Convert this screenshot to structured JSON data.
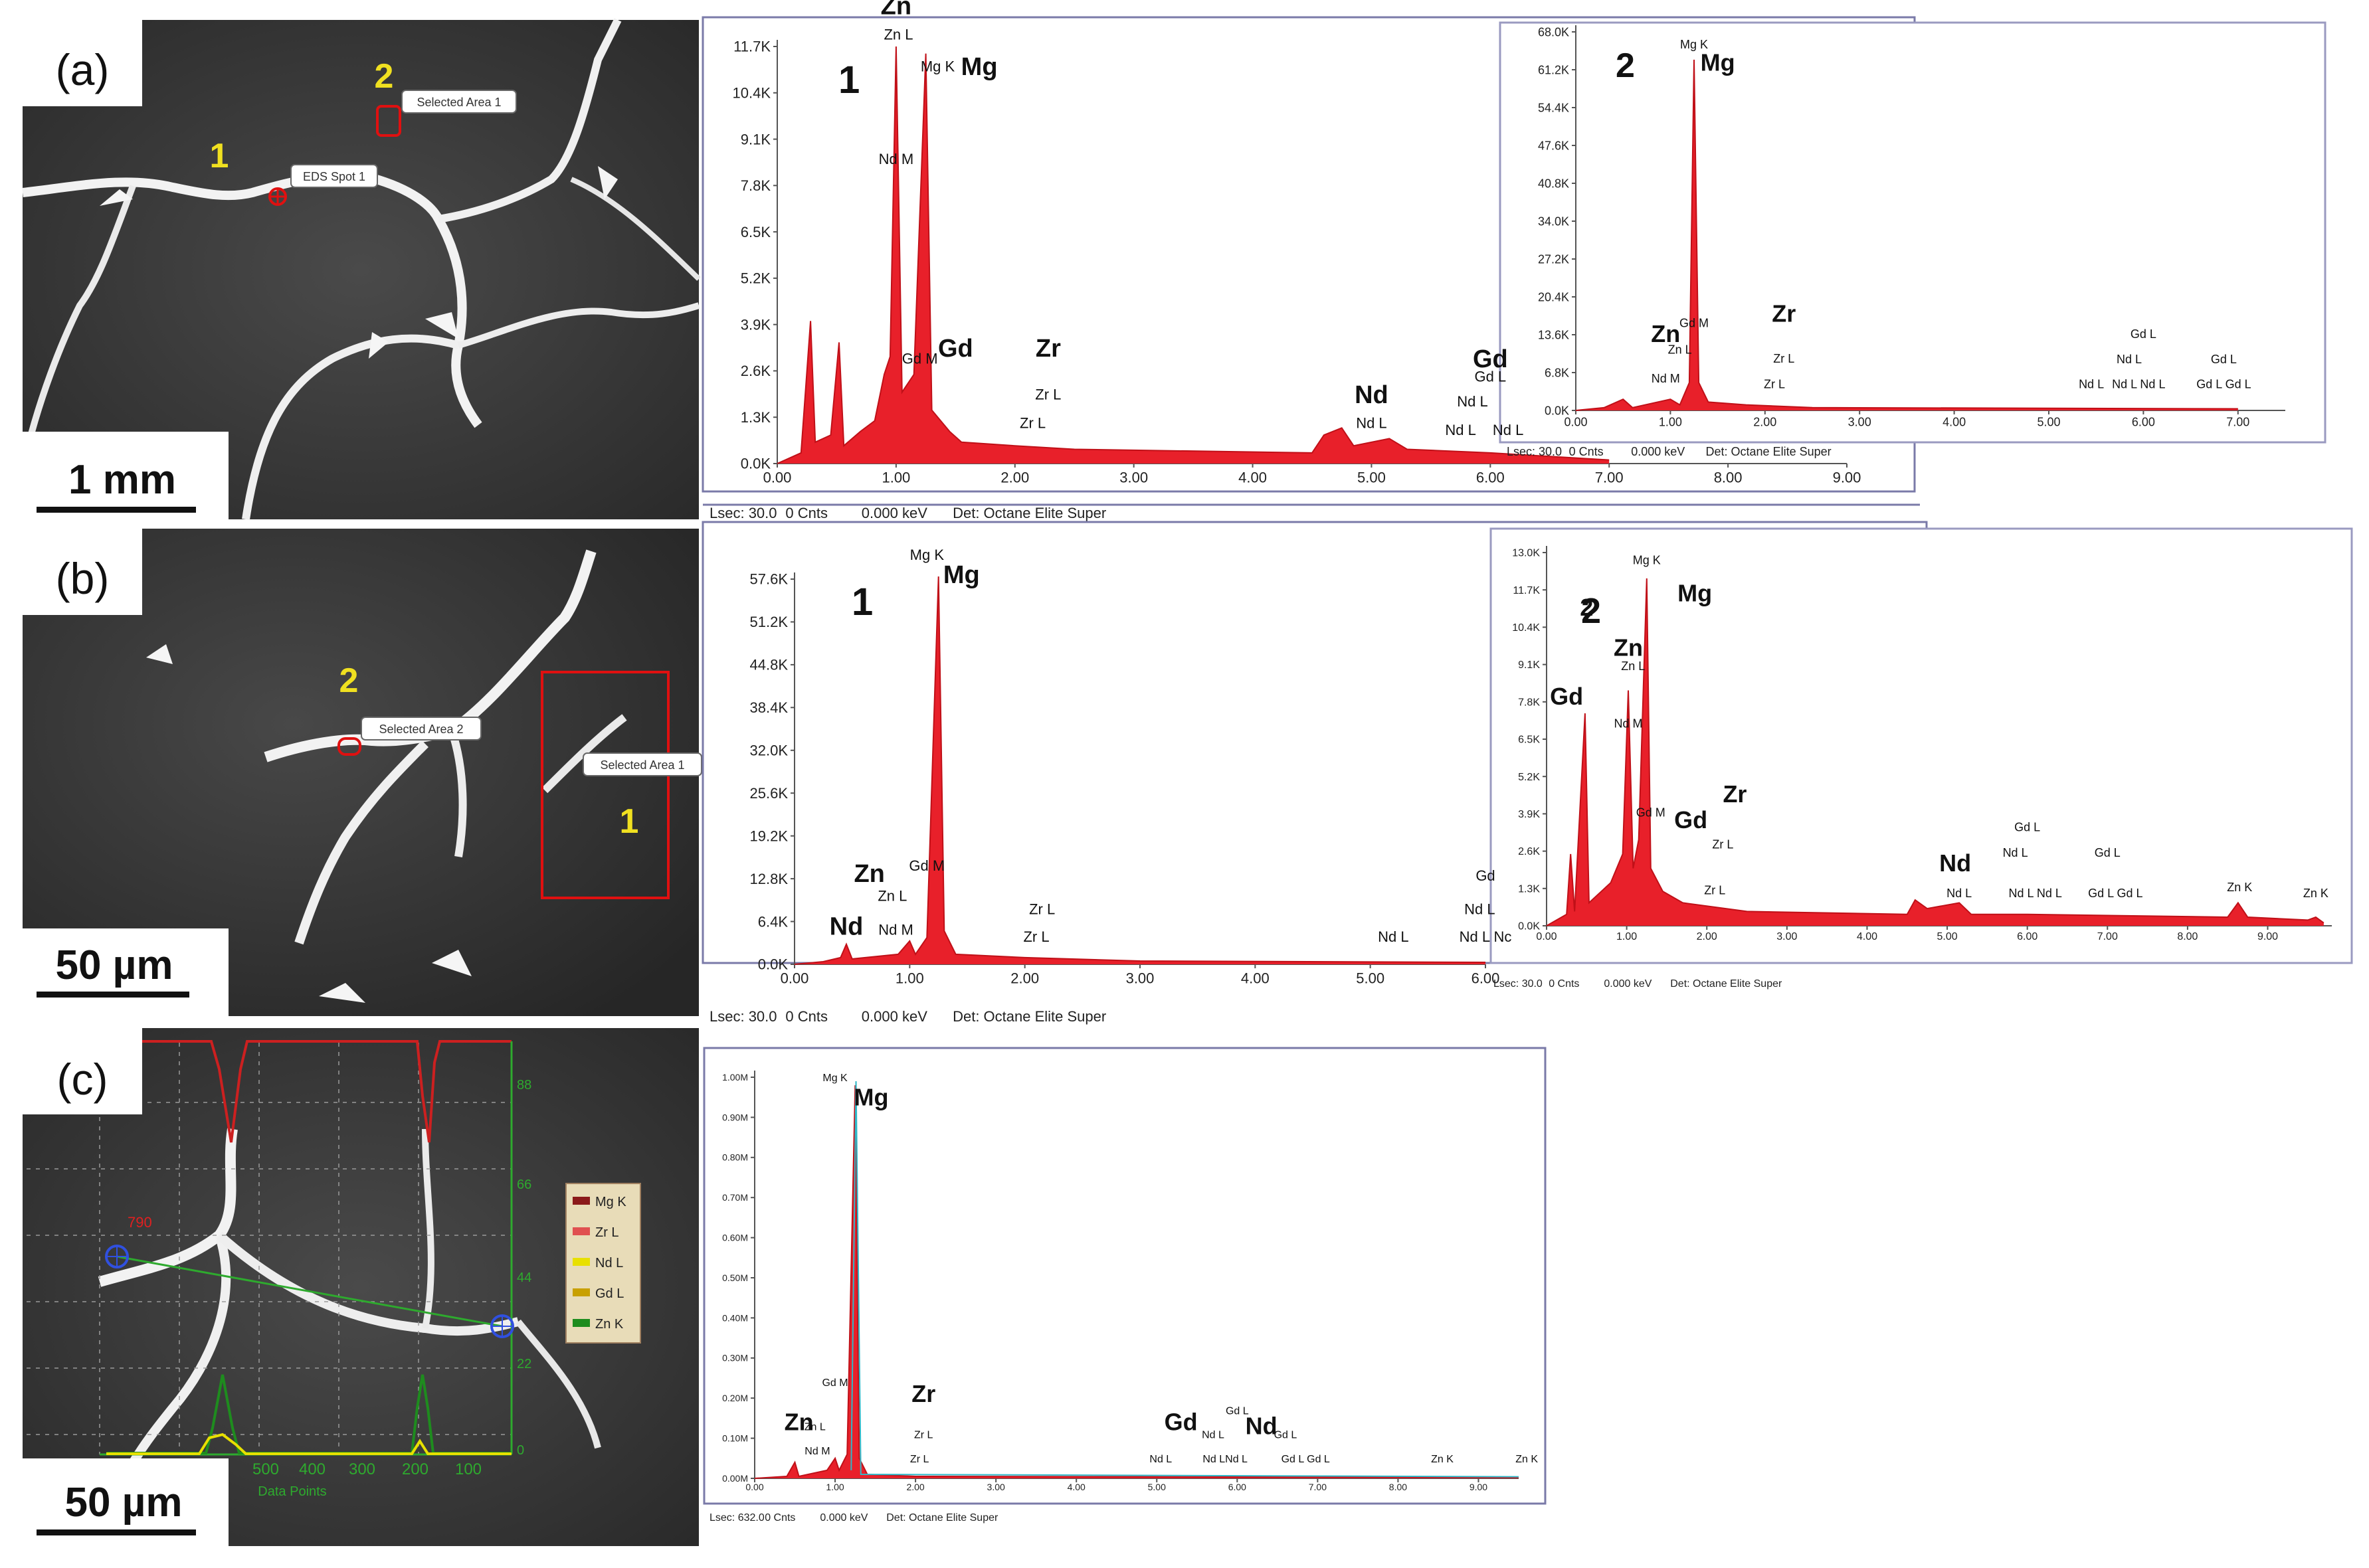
{
  "panel_labels": [
    "(a)",
    "(b)",
    "(c)"
  ],
  "micrographs": [
    {
      "scale_bar": "1 mm",
      "markers": [
        "1",
        "2"
      ],
      "callouts": [
        "Selected Area 1",
        "EDS Spot 1"
      ]
    },
    {
      "scale_bar": "50 µm",
      "markers": [
        "2",
        "1"
      ],
      "callouts": [
        "Selected Area 2",
        "Selected Area 1"
      ]
    },
    {
      "scale_bar": "50 µm",
      "profile_right_ticks": [
        "88",
        "66",
        "44",
        "22",
        "0"
      ],
      "profile_x_ticks": [
        "500",
        "400",
        "300",
        "200",
        "100"
      ],
      "profile_xlabel": "Data Points",
      "spot_label": "790",
      "legend": [
        "Mg K",
        "Zr L",
        "Nd L",
        "Gd L",
        "Zn K"
      ],
      "colors": {
        "mg": "#8b1a1a",
        "zr": "#e05050",
        "nd": "#e8e000",
        "gd": "#c8a000",
        "zn": "#1e8c1e"
      }
    }
  ],
  "footer_labels": {
    "lsec": "Lsec",
    "cnts": "Cnts",
    "kev": "keV",
    "det": "Det: Octane Elite Super"
  },
  "chart_data": [
    {
      "type": "line",
      "id": "a1",
      "number": "1",
      "ylim": [
        0,
        11.7
      ],
      "x_ticks": [
        "0.00",
        "1.00",
        "2.00",
        "3.00",
        "4.00",
        "5.00",
        "6.00",
        "7.00",
        "8.00",
        "9.00"
      ],
      "y_ticks": [
        "0.0K",
        "1.3K",
        "2.6K",
        "3.9K",
        "5.2K",
        "6.5K",
        "7.8K",
        "9.1K",
        "10.4K",
        "11.7K"
      ],
      "footer": {
        "lsec": "30.0",
        "cnts": "0",
        "kev": "0.000"
      },
      "points": [
        [
          0,
          0
        ],
        [
          0.2,
          0.3
        ],
        [
          0.28,
          4.0
        ],
        [
          0.32,
          0.6
        ],
        [
          0.45,
          0.8
        ],
        [
          0.52,
          3.4
        ],
        [
          0.56,
          0.5
        ],
        [
          0.7,
          0.9
        ],
        [
          0.82,
          1.2
        ],
        [
          0.9,
          2.5
        ],
        [
          0.95,
          3.0
        ],
        [
          1.0,
          11.7
        ],
        [
          1.05,
          2.0
        ],
        [
          1.15,
          2.5
        ],
        [
          1.25,
          11.5
        ],
        [
          1.3,
          1.5
        ],
        [
          1.45,
          0.9
        ],
        [
          1.55,
          0.6
        ],
        [
          2.0,
          0.5
        ],
        [
          2.5,
          0.4
        ],
        [
          4.5,
          0.3
        ],
        [
          4.6,
          0.8
        ],
        [
          4.75,
          1.0
        ],
        [
          4.85,
          0.5
        ],
        [
          5.15,
          0.7
        ],
        [
          5.3,
          0.4
        ],
        [
          6.0,
          0.3
        ],
        [
          6.5,
          0.2
        ],
        [
          7,
          0.1
        ]
      ],
      "annotations": [
        {
          "x": 1.0,
          "y": 12.6,
          "text": "Zn",
          "big": true
        },
        {
          "x": 1.02,
          "y": 11.9,
          "text": "Zn L",
          "big": false
        },
        {
          "x": 1.35,
          "y": 11.0,
          "text": "Mg K",
          "big": false
        },
        {
          "x": 1.7,
          "y": 10.9,
          "text": "Mg",
          "big": true
        },
        {
          "x": 1.0,
          "y": 8.4,
          "text": "Nd M",
          "big": false
        },
        {
          "x": 1.5,
          "y": 3.0,
          "text": "Gd",
          "big": true
        },
        {
          "x": 1.2,
          "y": 2.8,
          "text": "Gd M",
          "big": false
        },
        {
          "x": 2.28,
          "y": 3.0,
          "text": "Zr",
          "big": true
        },
        {
          "x": 2.28,
          "y": 1.8,
          "text": "Zr L",
          "big": false
        },
        {
          "x": 2.15,
          "y": 1.0,
          "text": "Zr L",
          "big": false
        },
        {
          "x": 5.0,
          "y": 1.7,
          "text": "Nd",
          "big": true
        },
        {
          "x": 5.0,
          "y": 1.0,
          "text": "Nd L",
          "big": false
        },
        {
          "x": 6.0,
          "y": 2.7,
          "text": "Gd",
          "big": true
        },
        {
          "x": 6.0,
          "y": 2.3,
          "text": "Gd L",
          "big": false
        },
        {
          "x": 5.85,
          "y": 1.6,
          "text": "Nd L",
          "big": false
        },
        {
          "x": 5.75,
          "y": 0.8,
          "text": "Nd L",
          "big": false
        },
        {
          "x": 6.15,
          "y": 0.8,
          "text": "Nd L",
          "big": false
        }
      ]
    },
    {
      "type": "line",
      "id": "a2",
      "number": "2",
      "ylim": [
        0,
        68.0
      ],
      "x_ticks": [
        "0.00",
        "1.00",
        "2.00",
        "3.00",
        "4.00",
        "5.00",
        "6.00",
        "7.00"
      ],
      "y_ticks": [
        "0.0K",
        "6.8K",
        "13.6K",
        "20.4K",
        "27.2K",
        "34.0K",
        "40.8K",
        "47.6K",
        "54.4K",
        "61.2K",
        "68.0K"
      ],
      "footer": {
        "lsec": "30.0",
        "cnts": "0",
        "kev": "0.000"
      },
      "points": [
        [
          0,
          0
        ],
        [
          0.3,
          0.5
        ],
        [
          0.5,
          2.0
        ],
        [
          0.6,
          0.5
        ],
        [
          1.0,
          2.0
        ],
        [
          1.1,
          1.0
        ],
        [
          1.2,
          5.0
        ],
        [
          1.25,
          63.0
        ],
        [
          1.3,
          5.0
        ],
        [
          1.4,
          1.5
        ],
        [
          1.8,
          1.0
        ],
        [
          2.5,
          0.5
        ],
        [
          7,
          0.3
        ]
      ],
      "annotations": [
        {
          "x": 1.25,
          "y": 65.0,
          "text": "Mg K",
          "big": false
        },
        {
          "x": 1.5,
          "y": 61.0,
          "text": "Mg",
          "big": true
        },
        {
          "x": 1.25,
          "y": 15.0,
          "text": "Gd M",
          "big": false
        },
        {
          "x": 0.95,
          "y": 12.3,
          "text": "Zn",
          "big": true
        },
        {
          "x": 1.1,
          "y": 10.2,
          "text": "Zn L",
          "big": false
        },
        {
          "x": 0.95,
          "y": 5.0,
          "text": "Nd M",
          "big": false
        },
        {
          "x": 2.2,
          "y": 15.9,
          "text": "Zr",
          "big": true
        },
        {
          "x": 2.2,
          "y": 8.6,
          "text": "Zr L",
          "big": false
        },
        {
          "x": 2.1,
          "y": 4.0,
          "text": "Zr L",
          "big": false
        },
        {
          "x": 6.0,
          "y": 13.0,
          "text": "Gd L",
          "big": false
        },
        {
          "x": 5.85,
          "y": 8.5,
          "text": "Nd L",
          "big": false
        },
        {
          "x": 5.45,
          "y": 4.0,
          "text": "Nd L",
          "big": false
        },
        {
          "x": 5.95,
          "y": 4.0,
          "text": "Nd L Nd L",
          "big": false
        },
        {
          "x": 6.85,
          "y": 8.5,
          "text": "Gd L",
          "big": false
        },
        {
          "x": 6.85,
          "y": 4.0,
          "text": "Gd L  Gd L",
          "big": false
        }
      ]
    },
    {
      "type": "line",
      "id": "b1",
      "number": "1",
      "ylim": [
        0,
        57.6
      ],
      "x_ticks": [
        "0.00",
        "1.00",
        "2.00",
        "3.00",
        "4.00",
        "5.00",
        "6.00"
      ],
      "y_ticks": [
        "0.0K",
        "6.4K",
        "12.8K",
        "19.2K",
        "25.6K",
        "32.0K",
        "38.4K",
        "44.8K",
        "51.2K",
        "57.6K"
      ],
      "footer": {
        "lsec": "30.0",
        "cnts": "0",
        "kev": "0.000"
      },
      "points": [
        [
          0,
          0
        ],
        [
          0.25,
          0.4
        ],
        [
          0.4,
          1.0
        ],
        [
          0.45,
          3.0
        ],
        [
          0.5,
          0.8
        ],
        [
          0.9,
          1.5
        ],
        [
          1.0,
          3.5
        ],
        [
          1.05,
          1.5
        ],
        [
          1.15,
          4.0
        ],
        [
          1.25,
          58.0
        ],
        [
          1.3,
          5.0
        ],
        [
          1.4,
          1.5
        ],
        [
          2.0,
          1.0
        ],
        [
          3.0,
          0.5
        ],
        [
          6,
          0.3
        ]
      ],
      "annotations": [
        {
          "x": 1.15,
          "y": 60.5,
          "text": "Mg K",
          "big": false
        },
        {
          "x": 1.45,
          "y": 57.0,
          "text": "Mg",
          "big": true
        },
        {
          "x": 1.15,
          "y": 14.0,
          "text": "Gd M",
          "big": false
        },
        {
          "x": 0.65,
          "y": 12.3,
          "text": "Zn",
          "big": true
        },
        {
          "x": 0.85,
          "y": 9.5,
          "text": "Zn L",
          "big": false
        },
        {
          "x": 0.45,
          "y": 4.4,
          "text": "Nd",
          "big": true
        },
        {
          "x": 0.88,
          "y": 4.4,
          "text": "Nd M",
          "big": false
        },
        {
          "x": 2.15,
          "y": 7.5,
          "text": "Zr L",
          "big": false
        },
        {
          "x": 2.1,
          "y": 3.4,
          "text": "Zr L",
          "big": false
        },
        {
          "x": 5.2,
          "y": 3.4,
          "text": "Nd L",
          "big": false
        },
        {
          "x": 6.0,
          "y": 12.5,
          "text": "Gd",
          "big": false
        },
        {
          "x": 5.95,
          "y": 7.5,
          "text": "Nd L",
          "big": false
        },
        {
          "x": 6.0,
          "y": 3.4,
          "text": "Nd L Nc",
          "big": false
        }
      ]
    },
    {
      "type": "line",
      "id": "b2",
      "number": "2",
      "ylim": [
        0,
        13.0
      ],
      "x_ticks": [
        "0.00",
        "1.00",
        "2.00",
        "3.00",
        "4.00",
        "5.00",
        "6.00",
        "7.00",
        "8.00",
        "9.00"
      ],
      "y_ticks": [
        "0.0K",
        "1.3K",
        "2.6K",
        "3.9K",
        "5.2K",
        "6.5K",
        "7.8K",
        "9.1K",
        "10.4K",
        "11.7K",
        "13.0K"
      ],
      "footer": {
        "lsec": "30.0",
        "cnts": "0",
        "kev": "0.000"
      },
      "points": [
        [
          0,
          0
        ],
        [
          0.25,
          0.4
        ],
        [
          0.3,
          2.5
        ],
        [
          0.35,
          0.5
        ],
        [
          0.48,
          7.4
        ],
        [
          0.53,
          0.8
        ],
        [
          0.8,
          1.5
        ],
        [
          0.95,
          2.5
        ],
        [
          1.02,
          8.2
        ],
        [
          1.08,
          2.0
        ],
        [
          1.15,
          3.0
        ],
        [
          1.25,
          12.1
        ],
        [
          1.3,
          2.0
        ],
        [
          1.45,
          1.2
        ],
        [
          1.7,
          0.8
        ],
        [
          2.5,
          0.5
        ],
        [
          4.5,
          0.4
        ],
        [
          4.6,
          0.9
        ],
        [
          4.75,
          0.6
        ],
        [
          5.15,
          0.8
        ],
        [
          5.3,
          0.4
        ],
        [
          6.0,
          0.4
        ],
        [
          8.5,
          0.3
        ],
        [
          8.63,
          0.8
        ],
        [
          8.75,
          0.3
        ],
        [
          9.5,
          0.2
        ],
        [
          9.6,
          0.3
        ],
        [
          9.7,
          0.1
        ]
      ],
      "annotations": [
        {
          "x": 1.25,
          "y": 12.6,
          "text": "Mg K",
          "big": false
        },
        {
          "x": 1.85,
          "y": 11.3,
          "text": "Mg",
          "big": true
        },
        {
          "x": 0.5,
          "y": 10.8,
          "text": "2",
          "big": true
        },
        {
          "x": 0.25,
          "y": 7.7,
          "text": "Gd",
          "big": true
        },
        {
          "x": 1.02,
          "y": 9.4,
          "text": "Zn",
          "big": true
        },
        {
          "x": 1.08,
          "y": 8.9,
          "text": "Zn L",
          "big": false
        },
        {
          "x": 1.02,
          "y": 6.9,
          "text": "Nd M",
          "big": false
        },
        {
          "x": 1.3,
          "y": 3.8,
          "text": "Gd M",
          "big": false
        },
        {
          "x": 1.8,
          "y": 3.4,
          "text": "Gd",
          "big": true
        },
        {
          "x": 2.35,
          "y": 4.3,
          "text": "Zr",
          "big": true
        },
        {
          "x": 2.2,
          "y": 2.7,
          "text": "Zr L",
          "big": false
        },
        {
          "x": 2.1,
          "y": 1.1,
          "text": "Zr L",
          "big": false
        },
        {
          "x": 5.1,
          "y": 1.9,
          "text": "Nd",
          "big": true
        },
        {
          "x": 5.15,
          "y": 1.0,
          "text": "Nd L",
          "big": false
        },
        {
          "x": 6.0,
          "y": 3.3,
          "text": "Gd L",
          "big": false
        },
        {
          "x": 5.85,
          "y": 2.4,
          "text": "Nd L",
          "big": false
        },
        {
          "x": 6.1,
          "y": 1.0,
          "text": "Nd L Nd L",
          "big": false
        },
        {
          "x": 7.0,
          "y": 2.4,
          "text": "Gd L",
          "big": false
        },
        {
          "x": 7.1,
          "y": 1.0,
          "text": "Gd L  Gd L",
          "big": false
        },
        {
          "x": 8.65,
          "y": 1.2,
          "text": "Zn K",
          "big": false
        },
        {
          "x": 9.6,
          "y": 1.0,
          "text": "Zn K",
          "big": false
        }
      ]
    },
    {
      "type": "line",
      "id": "c1",
      "number": "",
      "ylim": [
        0,
        1.0
      ],
      "x_ticks": [
        "0.00",
        "1.00",
        "2.00",
        "3.00",
        "4.00",
        "5.00",
        "6.00",
        "7.00",
        "8.00",
        "9.00"
      ],
      "y_ticks": [
        "0.00M",
        "0.10M",
        "0.20M",
        "0.30M",
        "0.40M",
        "0.50M",
        "0.60M",
        "0.70M",
        "0.80M",
        "0.90M",
        "1.00M"
      ],
      "footer": {
        "lsec": "632.0",
        "cnts": "0",
        "kev": "0.000"
      },
      "points": [
        [
          0,
          0
        ],
        [
          0.4,
          0.005
        ],
        [
          0.5,
          0.04
        ],
        [
          0.55,
          0.005
        ],
        [
          0.9,
          0.02
        ],
        [
          1.0,
          0.05
        ],
        [
          1.05,
          0.02
        ],
        [
          1.15,
          0.06
        ],
        [
          1.25,
          0.98
        ],
        [
          1.3,
          0.05
        ],
        [
          1.4,
          0.01
        ],
        [
          2.0,
          0.005
        ],
        [
          9.5,
          0.002
        ]
      ],
      "annotations": [
        {
          "x": 1.0,
          "y": 0.99,
          "text": "Mg K",
          "big": false
        },
        {
          "x": 1.45,
          "y": 0.93,
          "text": "Mg",
          "big": true
        },
        {
          "x": 1.0,
          "y": 0.23,
          "text": "Gd M",
          "big": false
        },
        {
          "x": 0.55,
          "y": 0.12,
          "text": "Zn",
          "big": true
        },
        {
          "x": 0.75,
          "y": 0.12,
          "text": "Zn L",
          "big": false
        },
        {
          "x": 0.78,
          "y": 0.06,
          "text": "Nd M",
          "big": false
        },
        {
          "x": 2.1,
          "y": 0.19,
          "text": "Zr",
          "big": true
        },
        {
          "x": 2.1,
          "y": 0.1,
          "text": "Zr L",
          "big": false
        },
        {
          "x": 2.05,
          "y": 0.04,
          "text": "Zr L",
          "big": false
        },
        {
          "x": 5.3,
          "y": 0.12,
          "text": "Gd",
          "big": true
        },
        {
          "x": 5.7,
          "y": 0.1,
          "text": "Nd L",
          "big": false
        },
        {
          "x": 6.0,
          "y": 0.16,
          "text": "Gd L",
          "big": false
        },
        {
          "x": 6.3,
          "y": 0.11,
          "text": "Nd",
          "big": true
        },
        {
          "x": 6.6,
          "y": 0.1,
          "text": "Gd L",
          "big": false
        },
        {
          "x": 5.05,
          "y": 0.04,
          "text": "Nd L",
          "big": false
        },
        {
          "x": 5.85,
          "y": 0.04,
          "text": "Nd LNd L",
          "big": false
        },
        {
          "x": 6.85,
          "y": 0.04,
          "text": "Gd L  Gd L",
          "big": false
        },
        {
          "x": 8.55,
          "y": 0.04,
          "text": "Zn K",
          "big": false
        },
        {
          "x": 9.6,
          "y": 0.04,
          "text": "Zn K",
          "big": false
        }
      ]
    }
  ]
}
